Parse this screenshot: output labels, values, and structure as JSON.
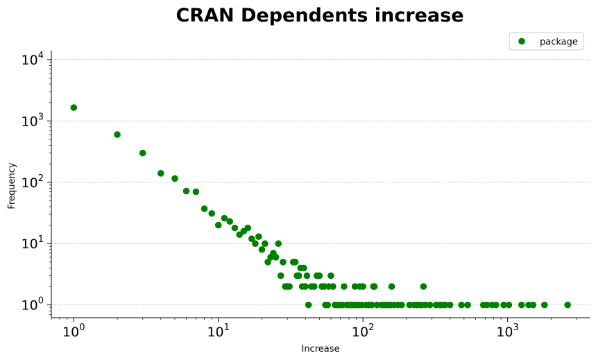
{
  "chart_data": {
    "type": "scatter",
    "title": "CRAN Dependents increase",
    "xlabel": "Increase",
    "ylabel": "Frequency",
    "xscale": "log",
    "yscale": "log",
    "xlim": [
      0.7,
      3700
    ],
    "ylim": [
      0.62,
      14000
    ],
    "x_ticks": [
      {
        "base": "10",
        "exp": "0"
      },
      {
        "base": "10",
        "exp": "1"
      },
      {
        "base": "10",
        "exp": "2"
      },
      {
        "base": "10",
        "exp": "3"
      }
    ],
    "y_ticks": [
      {
        "base": "10",
        "exp": "0"
      },
      {
        "base": "10",
        "exp": "1"
      },
      {
        "base": "10",
        "exp": "2"
      },
      {
        "base": "10",
        "exp": "3"
      },
      {
        "base": "10",
        "exp": "4"
      }
    ],
    "grid": {
      "y": true,
      "x": false
    },
    "legend": {
      "position": "top-right",
      "entries": [
        "package"
      ]
    },
    "colors": {
      "marker": "#008000"
    },
    "series": [
      {
        "name": "package",
        "points": [
          [
            1,
            1650
          ],
          [
            2,
            600
          ],
          [
            3,
            300
          ],
          [
            4,
            140
          ],
          [
            5,
            115
          ],
          [
            6,
            72
          ],
          [
            7,
            70
          ],
          [
            8,
            37
          ],
          [
            9,
            31
          ],
          [
            10,
            20
          ],
          [
            11,
            26
          ],
          [
            12,
            23
          ],
          [
            13,
            18
          ],
          [
            14,
            14
          ],
          [
            15,
            16
          ],
          [
            16,
            18
          ],
          [
            17,
            12
          ],
          [
            18,
            10
          ],
          [
            19,
            13
          ],
          [
            20,
            8
          ],
          [
            21,
            10
          ],
          [
            22,
            5
          ],
          [
            23,
            6
          ],
          [
            24,
            7
          ],
          [
            25,
            6
          ],
          [
            26,
            10
          ],
          [
            27,
            3
          ],
          [
            28,
            5
          ],
          [
            29,
            2
          ],
          [
            30,
            2
          ],
          [
            31,
            2
          ],
          [
            33,
            5
          ],
          [
            34,
            5
          ],
          [
            35,
            3
          ],
          [
            36,
            3
          ],
          [
            37,
            4
          ],
          [
            39,
            4
          ],
          [
            38,
            2
          ],
          [
            40,
            2
          ],
          [
            41,
            3
          ],
          [
            42,
            1
          ],
          [
            44,
            2
          ],
          [
            46,
            2
          ],
          [
            48,
            3
          ],
          [
            50,
            3
          ],
          [
            52,
            2
          ],
          [
            54,
            2
          ],
          [
            55,
            1
          ],
          [
            57,
            1
          ],
          [
            58,
            2
          ],
          [
            60,
            3
          ],
          [
            62,
            2
          ],
          [
            64,
            1
          ],
          [
            66,
            1
          ],
          [
            68,
            1
          ],
          [
            70,
            1
          ],
          [
            72,
            1
          ],
          [
            74,
            2
          ],
          [
            77,
            1
          ],
          [
            80,
            1
          ],
          [
            83,
            1
          ],
          [
            86,
            1
          ],
          [
            88,
            2
          ],
          [
            90,
            1
          ],
          [
            93,
            1
          ],
          [
            95,
            2
          ],
          [
            98,
            1
          ],
          [
            100,
            2
          ],
          [
            105,
            1
          ],
          [
            110,
            1
          ],
          [
            115,
            1
          ],
          [
            118,
            2
          ],
          [
            120,
            2
          ],
          [
            125,
            1
          ],
          [
            135,
            1
          ],
          [
            140,
            1
          ],
          [
            145,
            1
          ],
          [
            150,
            1
          ],
          [
            155,
            1
          ],
          [
            158,
            2
          ],
          [
            165,
            1
          ],
          [
            175,
            1
          ],
          [
            185,
            1
          ],
          [
            210,
            1
          ],
          [
            225,
            1
          ],
          [
            235,
            1
          ],
          [
            245,
            1
          ],
          [
            255,
            1
          ],
          [
            262,
            2
          ],
          [
            270,
            1
          ],
          [
            290,
            1
          ],
          [
            320,
            1
          ],
          [
            340,
            1
          ],
          [
            355,
            1
          ],
          [
            370,
            1
          ],
          [
            400,
            1
          ],
          [
            480,
            1
          ],
          [
            530,
            1
          ],
          [
            680,
            1
          ],
          [
            720,
            1
          ],
          [
            780,
            1
          ],
          [
            830,
            1
          ],
          [
            940,
            1
          ],
          [
            1020,
            1
          ],
          [
            1250,
            1
          ],
          [
            1400,
            1
          ],
          [
            1500,
            1
          ],
          [
            1800,
            1
          ],
          [
            2600,
            1
          ]
        ]
      }
    ]
  }
}
